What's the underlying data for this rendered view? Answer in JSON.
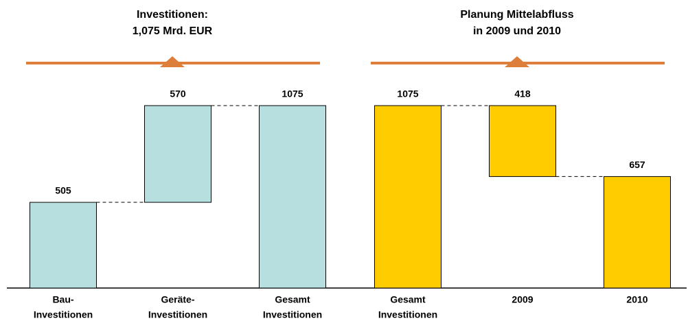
{
  "chart_data": [
    {
      "type": "waterfall",
      "title": [
        "Investitionen:",
        "1,075 Mrd. EUR"
      ],
      "categories": [
        [
          "Bau-",
          "Investitionen"
        ],
        [
          "Geräte-",
          "Investitionen"
        ],
        [
          "Gesamt",
          "Investitionen"
        ]
      ],
      "values": [
        505,
        570,
        1075
      ],
      "measures": [
        "relative",
        "relative",
        "total"
      ],
      "color": "#b7dfe0"
    },
    {
      "type": "waterfall",
      "title": [
        "Planung Mittelabfluss",
        "in 2009 und 2010"
      ],
      "categories": [
        [
          "Gesamt",
          "Investitionen"
        ],
        [
          "2009"
        ],
        [
          "2010"
        ]
      ],
      "values": [
        1075,
        418,
        657
      ],
      "measures": [
        "total",
        "decrease",
        "total"
      ],
      "color": "#ffcc00"
    }
  ]
}
